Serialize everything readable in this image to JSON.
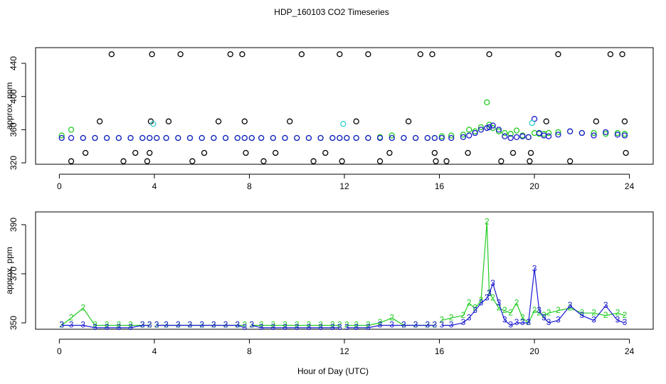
{
  "chart_data": [
    {
      "type": "scatter",
      "title": "HDP_160103  CO2 Timeseries",
      "y_label": "approx. ppm",
      "xlim": [
        -1,
        25
      ],
      "xticks": [
        0,
        4,
        8,
        12,
        16,
        20,
        24
      ],
      "ylim": [
        318.3,
        458.9
      ],
      "yticks": [
        320,
        360,
        400,
        440
      ],
      "grid": false,
      "x": [
        0.1,
        0.5,
        1,
        1.5,
        2,
        2.5,
        3,
        3.5,
        3.8,
        3.9,
        4.1,
        4.5,
        5,
        5.5,
        6,
        6.5,
        7,
        7.5,
        7.8,
        7.9,
        8.1,
        8.5,
        9,
        9.5,
        10,
        10.5,
        11,
        11.5,
        11.8,
        11.9,
        12.1,
        12.5,
        13,
        13.5,
        14,
        14.5,
        15,
        15.5,
        15.8,
        15.9,
        16.1,
        16.5,
        17,
        17.25,
        17.5,
        17.75,
        18,
        18.1,
        18.25,
        18.5,
        18.75,
        19,
        19.25,
        19.5,
        19.75,
        20,
        20.2,
        20.4,
        20.6,
        21,
        21.5,
        22,
        22.5,
        23,
        23.5,
        23.8
      ],
      "series": [
        {
          "color": "#000000",
          "x": [
            0.5,
            1.1,
            1.7,
            2.2,
            2.7,
            3.2,
            3.7,
            3.8,
            3.85,
            3.9,
            4.6,
            5.1,
            5.6,
            6.1,
            6.7,
            7.2,
            7.7,
            7.8,
            7.85,
            8.6,
            9.1,
            9.7,
            10.2,
            10.7,
            11.2,
            11.8,
            11.9,
            12.5,
            13,
            13.5,
            13.9,
            14.7,
            15.2,
            15.7,
            15.8,
            15.85,
            16.3,
            17.2,
            18.1,
            18.6,
            19.1,
            19.8,
            19.85,
            20.5,
            21,
            21.5,
            22.6,
            23.2,
            23.7,
            23.8,
            23.85
          ],
          "values": [
            322,
            332,
            370,
            451,
            322,
            332,
            322,
            332,
            370,
            451,
            370,
            451,
            322,
            332,
            370,
            451,
            451,
            370,
            332,
            322,
            332,
            370,
            451,
            322,
            332,
            451,
            322,
            370,
            451,
            322,
            332,
            370,
            451,
            451,
            332,
            322,
            322,
            332,
            451,
            322,
            332,
            322,
            332,
            370,
            451,
            322,
            370,
            451,
            451,
            370,
            332
          ]
        },
        {
          "color": "#22cc22",
          "values": [
            353,
            360,
            350,
            350,
            350,
            350,
            350,
            350,
            350,
            null,
            350,
            350,
            350,
            350,
            350,
            350,
            350,
            350,
            350,
            null,
            350,
            350,
            350,
            350,
            350,
            350,
            350,
            350,
            350,
            null,
            350,
            350,
            350,
            351,
            353,
            350,
            350,
            350,
            350,
            null,
            352,
            353,
            354,
            360,
            358,
            363,
            393,
            366,
            362,
            358,
            356,
            355,
            359,
            353,
            351,
            356,
            355,
            355,
            356,
            357,
            358,
            356,
            356,
            355,
            356,
            355
          ]
        },
        {
          "color": "#1a1ad0",
          "values": [
            350,
            350,
            350,
            350,
            350,
            350,
            350,
            350,
            350,
            null,
            350,
            350,
            350,
            350,
            350,
            350,
            350,
            350,
            350,
            null,
            350,
            350,
            350,
            350,
            350,
            350,
            350,
            350,
            350,
            null,
            350,
            350,
            350,
            350,
            350,
            350,
            350,
            350,
            350,
            null,
            350,
            350,
            351,
            353,
            356,
            360,
            362,
            363,
            365,
            360,
            352,
            350,
            351,
            352,
            351,
            373,
            356,
            353,
            352,
            354,
            358,
            356,
            353,
            357,
            354,
            353
          ]
        },
        {
          "color": "#33cccc",
          "x": [
            3.95,
            11.95,
            19.9
          ],
          "values": [
            367,
            367,
            368
          ]
        }
      ]
    },
    {
      "type": "line",
      "y_label": "approx. ppm",
      "x_label": "Hour of Day (UTC)",
      "xlim": [
        -1,
        25
      ],
      "xticks": [
        0,
        4,
        8,
        12,
        16,
        20,
        24
      ],
      "ylim": [
        347.4,
        395.2
      ],
      "yticks": [
        350,
        370,
        390
      ],
      "grid": false,
      "x": [
        0.1,
        0.5,
        1,
        1.5,
        2,
        2.5,
        3,
        3.5,
        3.8,
        3.9,
        4.1,
        4.5,
        5,
        5.5,
        6,
        6.5,
        7,
        7.5,
        7.8,
        7.9,
        8.1,
        8.5,
        9,
        9.5,
        10,
        10.5,
        11,
        11.5,
        11.8,
        11.9,
        12.1,
        12.5,
        13,
        13.5,
        14,
        14.5,
        15,
        15.5,
        15.8,
        15.9,
        16.1,
        16.5,
        17,
        17.25,
        17.5,
        17.75,
        18,
        18.1,
        18.25,
        18.5,
        18.75,
        19,
        19.25,
        19.5,
        19.75,
        20,
        20.2,
        20.4,
        20.6,
        21,
        21.5,
        22,
        22.5,
        23,
        23.5,
        23.8
      ],
      "series": [
        {
          "marker": "2",
          "color": "#22cc22",
          "values": [
            349,
            352,
            356,
            349,
            349,
            349,
            349,
            349,
            349,
            null,
            349,
            349,
            349,
            349,
            349,
            349,
            349,
            349,
            349,
            null,
            349,
            349,
            349,
            349,
            349,
            349,
            349,
            349,
            349,
            null,
            349,
            349,
            349,
            350,
            352,
            349,
            349,
            349,
            349,
            null,
            351,
            352,
            353,
            358,
            356,
            359,
            391,
            362,
            360,
            356,
            355,
            354,
            358,
            352,
            350,
            355,
            354,
            353,
            354,
            355,
            356,
            354,
            354,
            353,
            354,
            353
          ]
        },
        {
          "marker": "3",
          "color": "#1a1ad0",
          "values": [
            349,
            349,
            349,
            348,
            348,
            348,
            348,
            349,
            349,
            null,
            349,
            349,
            349,
            349,
            349,
            349,
            349,
            349,
            348,
            null,
            349,
            348,
            348,
            348,
            348,
            348,
            348,
            348,
            348,
            null,
            348,
            348,
            348,
            349,
            349,
            349,
            349,
            349,
            349,
            null,
            349,
            349,
            350,
            352,
            355,
            358,
            360,
            362,
            366,
            358,
            351,
            349,
            350,
            350,
            350,
            372,
            355,
            352,
            350,
            351,
            357,
            353,
            351,
            357,
            351,
            350
          ]
        }
      ]
    }
  ]
}
